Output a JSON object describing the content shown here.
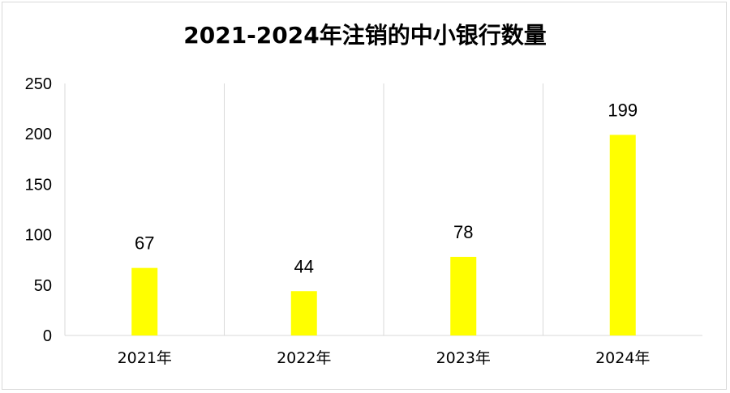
{
  "chart_data": {
    "type": "bar",
    "title": "2021-2024年注销的中小银行数量",
    "categories": [
      "2021年",
      "2022年",
      "2023年",
      "2024年"
    ],
    "values": [
      67,
      44,
      78,
      199
    ],
    "ylim": [
      0,
      250
    ],
    "yticks": [
      0,
      50,
      100,
      150,
      200,
      250
    ],
    "xlabel": "",
    "ylabel": "",
    "grid": "vertical category separators",
    "legend": "none",
    "data_labels": true,
    "bar_color": "#ffff00"
  }
}
